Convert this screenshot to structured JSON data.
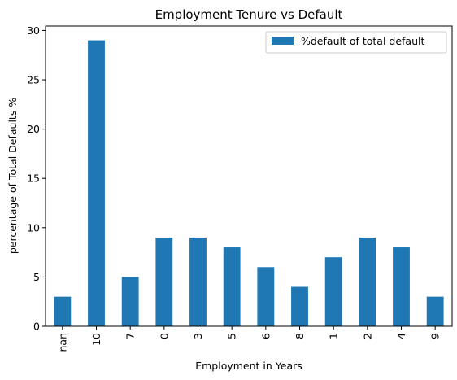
{
  "chart_data": {
    "type": "bar",
    "title": "Employment Tenure vs Default",
    "xlabel": "Employment in Years",
    "ylabel": "percentage of Total Defaults %",
    "categories": [
      "nan",
      "10",
      "7",
      "0",
      "3",
      "5",
      "6",
      "8",
      "1",
      "2",
      "4",
      "9"
    ],
    "series": [
      {
        "name": "%default of total default",
        "values": [
          3,
          29,
          5,
          9,
          9,
          8,
          6,
          4,
          7,
          9,
          8,
          3
        ],
        "color": "#1f77b4"
      }
    ],
    "yticks": [
      0,
      5,
      10,
      15,
      20,
      25,
      30
    ],
    "ylim": [
      0,
      30.45
    ],
    "legend": "top-right",
    "grid": false
  }
}
